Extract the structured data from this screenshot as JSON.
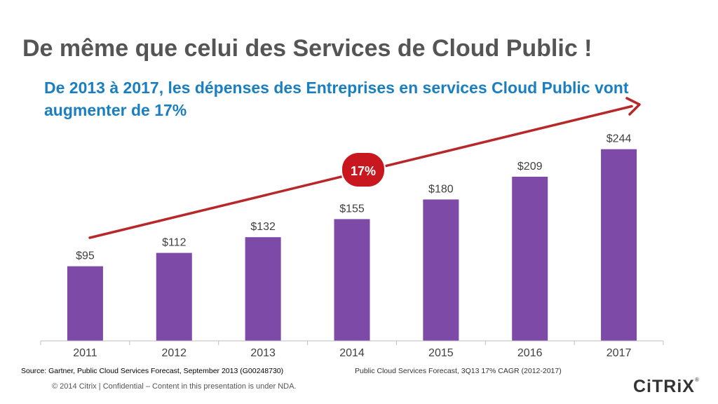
{
  "slide": {
    "title": "De même que celui des Services de Cloud Public !",
    "subtitle": "De 2013 à 2017, les dépenses des Entreprises en services Cloud Public vont augmenter de 17%",
    "source": "Source: Gartner, Public Cloud Services Forecast, September 2013 (G00248730)",
    "forecast_note": "Public Cloud Services Forecast, 3Q13 17% CAGR (2012-2017)",
    "copyright": "© 2014 Citrix | Confidential – Content in this presentation is under NDA.",
    "logo_text": "CiTRiX",
    "logo_mark": "®"
  },
  "colors": {
    "bar": "#7e4aa8",
    "arrow": "#b8282a",
    "badge": "#c8171e",
    "title": "#555555",
    "subtitle": "#1a7fc1"
  },
  "chart_data": {
    "type": "bar",
    "categories": [
      "2011",
      "2012",
      "2013",
      "2014",
      "2015",
      "2016",
      "2017"
    ],
    "values": [
      95,
      112,
      132,
      155,
      180,
      209,
      244
    ],
    "value_labels": [
      "$95",
      "$112",
      "$132",
      "$155",
      "$180",
      "$209",
      "$244"
    ],
    "ylim": [
      0,
      275
    ],
    "grid": false,
    "annotation": {
      "text": "17%",
      "shape": "rounded badge",
      "trend_arrow": "rising, from 2011 to 2017"
    }
  }
}
